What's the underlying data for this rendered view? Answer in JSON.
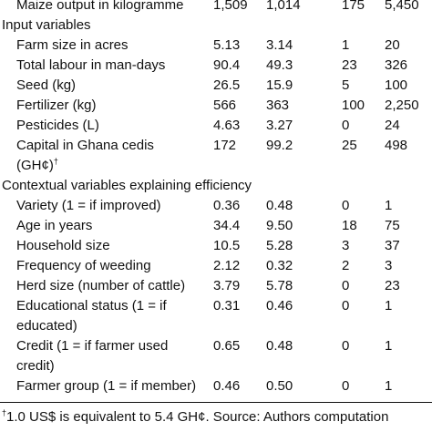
{
  "table": {
    "rows": [
      {
        "label": [
          "Maize output in kilogramme"
        ],
        "values": [
          "1,509",
          "1,014",
          "175",
          "5,450"
        ]
      },
      {
        "section": "Input variables"
      },
      {
        "label": [
          "Farm size in acres"
        ],
        "values": [
          "5.13",
          "3.14",
          "1",
          "20"
        ]
      },
      {
        "label": [
          "Total labour in man-days"
        ],
        "values": [
          "90.4",
          "49.3",
          "23",
          "326"
        ]
      },
      {
        "label": [
          "Seed (kg)"
        ],
        "values": [
          "26.5",
          "15.9",
          "5",
          "100"
        ]
      },
      {
        "label": [
          "Fertilizer (kg)"
        ],
        "values": [
          "566",
          "363",
          "100",
          "2,250"
        ]
      },
      {
        "label": [
          "Pesticides (L)"
        ],
        "values": [
          "4.63",
          "3.27",
          "0",
          "24"
        ]
      },
      {
        "label": [
          "Capital in Ghana cedis",
          "(GH¢)"
        ],
        "mark": "†",
        "values": [
          "172",
          "99.2",
          "25",
          "498"
        ]
      },
      {
        "section": "Contextual variables explaining efficiency"
      },
      {
        "label": [
          "Variety (1 = if improved)"
        ],
        "values": [
          "0.36",
          "0.48",
          "0",
          "1"
        ]
      },
      {
        "label": [
          "Age in years"
        ],
        "values": [
          "34.4",
          "9.50",
          "18",
          "75"
        ]
      },
      {
        "label": [
          "Household size"
        ],
        "values": [
          "10.5",
          "5.28",
          "3",
          "37"
        ]
      },
      {
        "label": [
          "Frequency of weeding"
        ],
        "values": [
          "2.12",
          "0.32",
          "2",
          "3"
        ]
      },
      {
        "label": [
          "Herd size (number of cattle)"
        ],
        "values": [
          "3.79",
          "5.78",
          "0",
          "23"
        ]
      },
      {
        "label": [
          "Educational status (1 = if",
          "educated)"
        ],
        "values": [
          "0.31",
          "0.46",
          "0",
          "1"
        ]
      },
      {
        "label": [
          "Credit (1 = if farmer used",
          "credit)"
        ],
        "values": [
          "0.65",
          "0.48",
          "0",
          "1"
        ]
      },
      {
        "label": [
          "Farmer group (1 = if member)"
        ],
        "values": [
          "0.46",
          "0.50",
          "0",
          "1"
        ]
      }
    ],
    "footnote": {
      "mark": "†",
      "text": "1.0 US$ is equivalent to 5.4 GH¢. Source: Authors computation"
    }
  }
}
